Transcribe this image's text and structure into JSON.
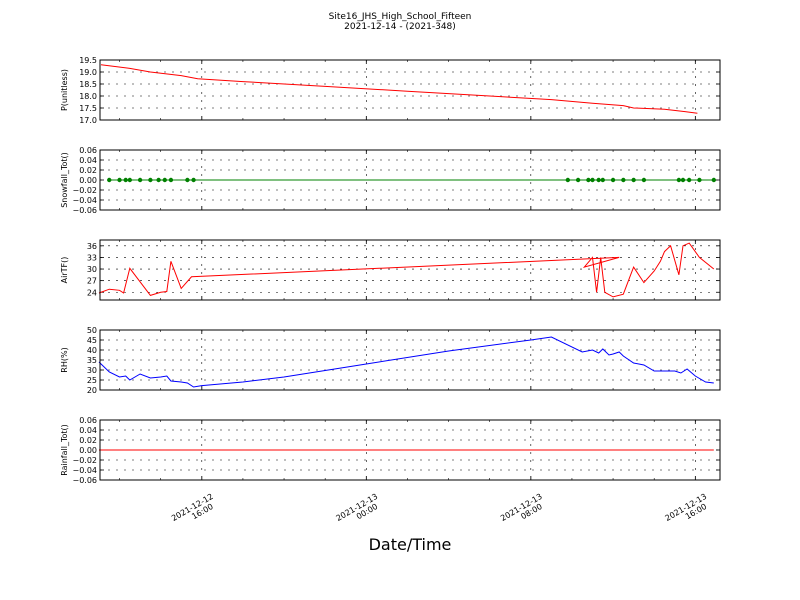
{
  "header": {
    "title": "Site16_JHS_High_School_Fifteen",
    "subtitle": "2021-12-14 - (2021-348)"
  },
  "xaxis": {
    "label": "Date/Time",
    "ticks": [
      {
        "t": 16,
        "line1": "2021-12-12",
        "line2": "16:00"
      },
      {
        "t": 24,
        "line1": "2021-12-13",
        "line2": "00:00"
      },
      {
        "t": 32,
        "line1": "2021-12-13",
        "line2": "08:00"
      },
      {
        "t": 40,
        "line1": "2021-12-13",
        "line2": "16:00"
      }
    ]
  },
  "chart_data": [
    {
      "type": "line",
      "ylabel": "P(unitless)",
      "ylim": [
        17.0,
        19.5
      ],
      "yticks": [
        "17.0",
        "17.5",
        "18.0",
        "18.5",
        "19.0",
        "19.5"
      ],
      "color": "#ff0000",
      "markers": false,
      "grid": true,
      "x": [
        11.1,
        12.5,
        13.5,
        15.0,
        15.8,
        18,
        22,
        26,
        30,
        33,
        35,
        36.5,
        37,
        38.5,
        39.5,
        40.1
      ],
      "y": [
        19.3,
        19.15,
        19.0,
        18.85,
        18.72,
        18.6,
        18.4,
        18.2,
        18.0,
        17.85,
        17.7,
        17.6,
        17.5,
        17.45,
        17.35,
        17.28
      ]
    },
    {
      "type": "line",
      "ylabel": "Snowfall_Tot()",
      "ylim": [
        -0.06,
        0.06
      ],
      "yticks": [
        "−0.06",
        "−0.04",
        "−0.02",
        "0.00",
        "0.02",
        "0.04",
        "0.06"
      ],
      "color": "#008000",
      "markers": true,
      "grid": true,
      "x": [
        11.5,
        12.0,
        12.3,
        12.5,
        13.0,
        13.5,
        13.9,
        14.2,
        14.5,
        15.3,
        15.6,
        33.8,
        34.3,
        34.8,
        35.0,
        35.3,
        35.5,
        36.0,
        36.5,
        37.0,
        37.5,
        39.2,
        39.4,
        39.7,
        40.2,
        40.9
      ],
      "y": [
        0,
        0,
        0,
        0,
        0,
        0,
        0,
        0,
        0,
        0,
        0,
        0,
        0,
        0,
        0,
        0,
        0,
        0,
        0,
        0,
        0,
        0,
        0,
        0,
        0,
        0
      ]
    },
    {
      "type": "line",
      "ylabel": "AirTF()",
      "ylim": [
        22,
        37.5
      ],
      "yticks": [
        "24",
        "27",
        "30",
        "33",
        "36"
      ],
      "color": "#ff0000",
      "markers": false,
      "grid": true,
      "x": [
        11.0,
        11.5,
        12.0,
        12.2,
        12.5,
        13.5,
        14.0,
        14.3,
        14.5,
        15.0,
        15.5,
        36.3,
        34.6,
        35.0,
        35.2,
        35.4,
        35.6,
        36.0,
        36.5,
        37.0,
        37.5,
        38.0,
        38.3,
        38.5,
        38.8,
        39.2,
        39.4,
        39.7,
        40.2,
        40.9
      ],
      "y": [
        23.8,
        24.8,
        24.5,
        23.8,
        30.2,
        23.2,
        24.0,
        24.2,
        32.0,
        25.0,
        28.0,
        33.0,
        30.5,
        33.0,
        24.0,
        33.0,
        24.0,
        22.8,
        23.5,
        30.5,
        26.5,
        29.5,
        32.0,
        34.5,
        36.0,
        28.5,
        36.0,
        36.7,
        33.0,
        30.0
      ]
    },
    {
      "type": "line",
      "ylabel": "RH(%)",
      "ylim": [
        20,
        50
      ],
      "yticks": [
        "20",
        "25",
        "30",
        "35",
        "40",
        "45",
        "50"
      ],
      "color": "#0000ff",
      "markers": false,
      "grid": true,
      "x": [
        11.0,
        11.5,
        12.0,
        12.3,
        12.5,
        13.0,
        13.5,
        14.0,
        14.3,
        14.5,
        15.0,
        15.3,
        15.6,
        16,
        18,
        20,
        24,
        28,
        32,
        33,
        34.5,
        35.0,
        35.3,
        35.5,
        35.8,
        36.0,
        36.3,
        36.5,
        37.0,
        37.5,
        38.0,
        38.5,
        39.0,
        39.3,
        39.6,
        40.0,
        40.5,
        40.9
      ],
      "y": [
        34,
        29,
        26.5,
        27,
        25,
        28,
        26,
        26.5,
        27,
        24.5,
        24,
        23.5,
        21.5,
        22.2,
        24.0,
        26.5,
        33.0,
        39.5,
        45.0,
        46.5,
        39.0,
        40.0,
        38.5,
        40.5,
        37.5,
        38.0,
        39.0,
        37.0,
        33.5,
        32.5,
        29.5,
        29.5,
        29.5,
        28.5,
        30.5,
        27.0,
        24.0,
        23.5
      ]
    },
    {
      "type": "line",
      "ylabel": "Rainfall_Tot()",
      "ylim": [
        -0.06,
        0.06
      ],
      "yticks": [
        "−0.06",
        "−0.04",
        "−0.02",
        "0.00",
        "0.02",
        "0.04",
        "0.06"
      ],
      "color": "#ff0000",
      "markers": false,
      "grid": true,
      "x": [
        11.0,
        40.9
      ],
      "y": [
        0,
        0
      ]
    }
  ]
}
